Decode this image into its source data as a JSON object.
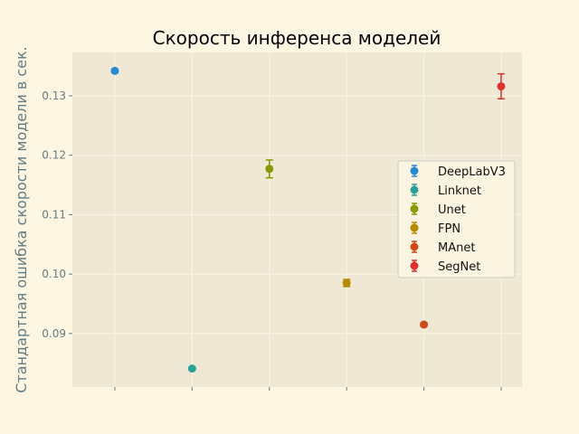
{
  "chart_data": {
    "type": "scatter",
    "title": "Скорость инференса моделей",
    "xlabel": "",
    "ylabel": "Стандартная ошибка скорости модели в сек.",
    "ylim": [
      0.081,
      0.1373
    ],
    "xlim": [
      -0.55,
      5.27
    ],
    "yticks": [
      0.09,
      0.1,
      0.11,
      0.12,
      0.13
    ],
    "ytick_labels": [
      "0.09",
      "0.10",
      "0.11",
      "0.12",
      "0.13"
    ],
    "xticks": [
      0,
      1,
      2,
      3,
      4,
      5
    ],
    "grid": true,
    "legend_position": "right",
    "series": [
      {
        "name": "DeepLabV3",
        "color": "#268bd2",
        "x": 0,
        "y": 0.1342,
        "err": 0.0003
      },
      {
        "name": "Linknet",
        "color": "#2aa198",
        "x": 1,
        "y": 0.0841,
        "err": 0.0002
      },
      {
        "name": "Unet",
        "color": "#859900",
        "x": 2,
        "y": 0.1177,
        "err": 0.0015
      },
      {
        "name": "FPN",
        "color": "#b58900",
        "x": 3,
        "y": 0.0985,
        "err": 0.0006
      },
      {
        "name": "MAnet",
        "color": "#cb4b16",
        "x": 4,
        "y": 0.0915,
        "err": 0.0003
      },
      {
        "name": "SegNet",
        "color": "#dc322f",
        "x": 5,
        "y": 0.1316,
        "err": 0.0021
      }
    ]
  }
}
